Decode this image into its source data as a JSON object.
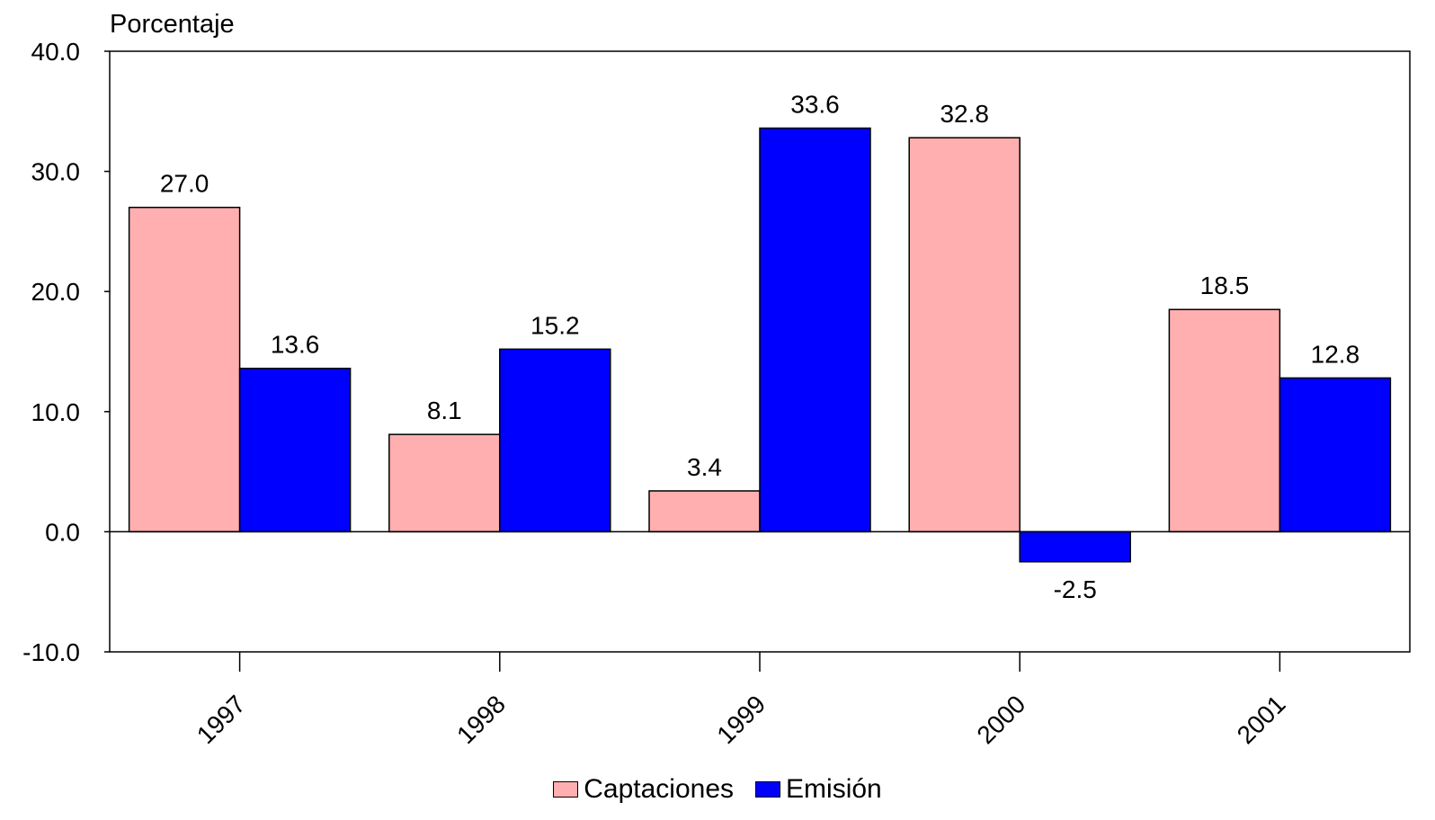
{
  "chart_data": {
    "type": "bar",
    "ylabel": "Porcentaje",
    "categories": [
      "1997",
      "1998",
      "1999",
      "2000",
      "2001"
    ],
    "series": [
      {
        "name": "Captaciones",
        "color": "#ffafaf",
        "values": [
          27.0,
          8.1,
          3.4,
          32.8,
          18.5
        ],
        "labels": [
          "27.0",
          "8.1",
          "3.4",
          "32.8",
          "18.5"
        ]
      },
      {
        "name": "Emisión",
        "color": "#0000ff",
        "values": [
          13.6,
          15.2,
          33.6,
          -2.5,
          12.8
        ],
        "labels": [
          "13.6",
          "15.2",
          "33.6",
          "-2.5",
          "12.8"
        ]
      }
    ],
    "ylim": [
      -10,
      40
    ],
    "yticks": [
      "-10.0",
      "0.0",
      "10.0",
      "20.0",
      "30.0",
      "40.0"
    ],
    "legend_position": "bottom-center",
    "grid": false
  }
}
